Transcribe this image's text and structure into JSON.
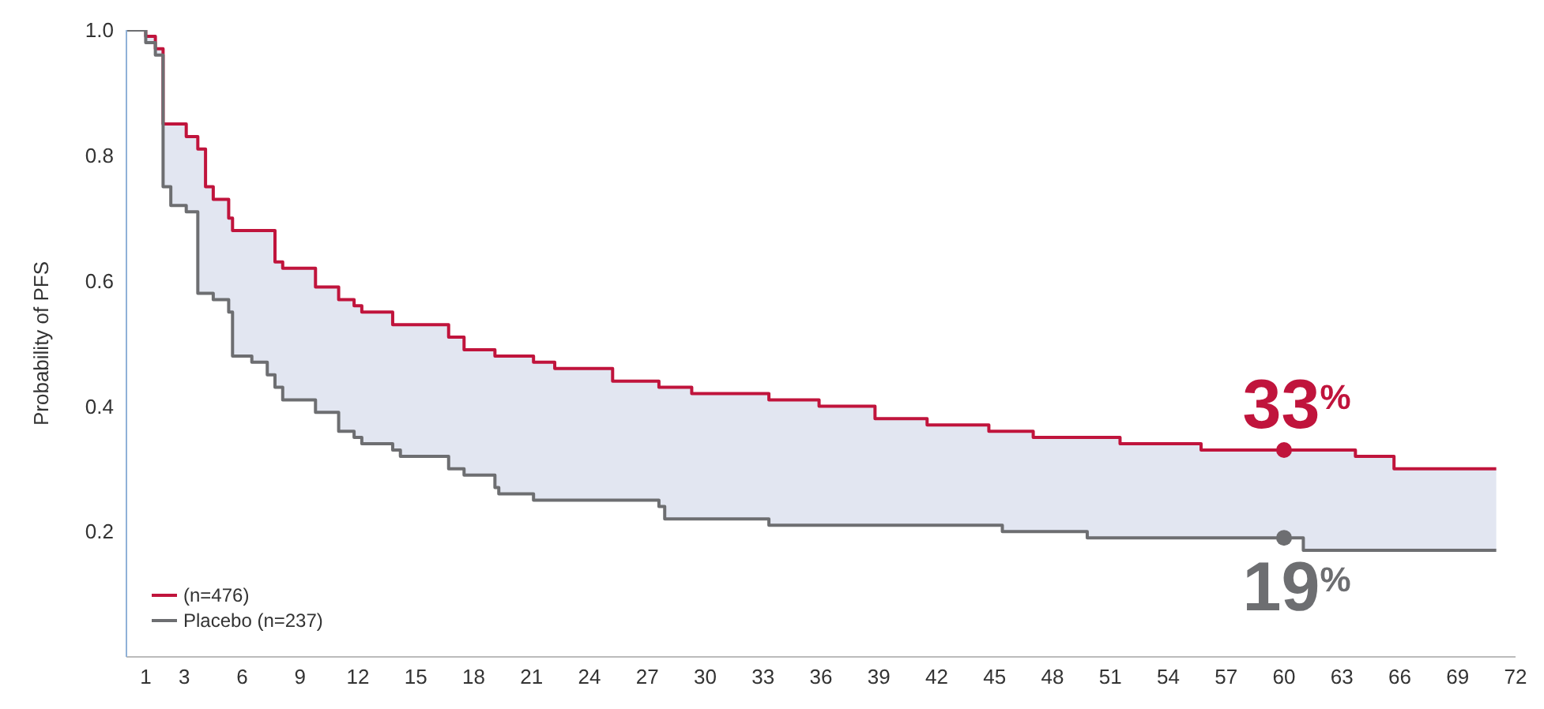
{
  "chart_data": {
    "type": "step",
    "ylabel": "Probability of PFS",
    "x": [
      0,
      1,
      1.5,
      1.9,
      2.3,
      3.1,
      3.7,
      4.1,
      4.5,
      5.3,
      5.5,
      6.5,
      7.3,
      7.7,
      8.1,
      9.8,
      11,
      11.8,
      12.2,
      13.8,
      14.2,
      16.7,
      17.5,
      19.1,
      19.3,
      21.1,
      22.2,
      25.2,
      26.8,
      27.6,
      27.9,
      29.3,
      33.3,
      33.6,
      35.9,
      38.8,
      41.5,
      44.7,
      45.4,
      47,
      49.8,
      51.5,
      52.8,
      55.7,
      61,
      63.7,
      65.7,
      71
    ],
    "series": [
      {
        "name": "(n=476)",
        "color": "#c0143c",
        "values": [
          1.0,
          0.99,
          0.97,
          0.85,
          0.85,
          0.83,
          0.81,
          0.75,
          0.73,
          0.7,
          0.68,
          0.68,
          0.68,
          0.63,
          0.62,
          0.59,
          0.57,
          0.56,
          0.55,
          0.53,
          0.53,
          0.51,
          0.49,
          0.48,
          0.48,
          0.47,
          0.46,
          0.44,
          0.44,
          0.43,
          0.43,
          0.42,
          0.41,
          0.41,
          0.4,
          0.38,
          0.37,
          0.36,
          0.36,
          0.35,
          0.35,
          0.34,
          0.34,
          0.33,
          0.33,
          0.32,
          0.3,
          0.3
        ],
        "upper": [
          1.0,
          0.99,
          0.97,
          0.85,
          0.85,
          0.83,
          0.81,
          0.75,
          0.73,
          0.7,
          0.68,
          0.68,
          0.68,
          0.63,
          0.62,
          0.59,
          0.57,
          0.56,
          0.55,
          0.53,
          0.53,
          0.51,
          0.49,
          0.48,
          0.48,
          0.47,
          0.46,
          0.44,
          0.44,
          0.43,
          0.43,
          0.42,
          0.41,
          0.41,
          0.4,
          0.38,
          0.37,
          0.36,
          0.36,
          0.35,
          0.35,
          0.34,
          0.34,
          0.33,
          0.33,
          0.32,
          0.3,
          0.3
        ],
        "lower": [
          1.0,
          0.98,
          0.96,
          0.75,
          0.72,
          0.71,
          0.58,
          0.58,
          0.57,
          0.55,
          0.48,
          0.47,
          0.45,
          0.43,
          0.41,
          0.39,
          0.36,
          0.35,
          0.34,
          0.33,
          0.32,
          0.3,
          0.29,
          0.27,
          0.26,
          0.25,
          0.25,
          0.25,
          0.25,
          0.24,
          0.22,
          0.22,
          0.21,
          0.21,
          0.21,
          0.21,
          0.21,
          0.21,
          0.2,
          0.2,
          0.19,
          0.19,
          0.19,
          0.19,
          0.17,
          0.17,
          0.17,
          0.17
        ]
      },
      {
        "name": "Placebo (n=237)",
        "color": "#6d6e71",
        "values": [
          1.0,
          0.98,
          0.96,
          0.75,
          0.72,
          0.71,
          0.58,
          0.58,
          0.57,
          0.55,
          0.48,
          0.47,
          0.45,
          0.43,
          0.41,
          0.39,
          0.36,
          0.35,
          0.34,
          0.33,
          0.32,
          0.3,
          0.29,
          0.27,
          0.26,
          0.25,
          0.25,
          0.25,
          0.25,
          0.24,
          0.22,
          0.22,
          0.21,
          0.21,
          0.21,
          0.21,
          0.21,
          0.21,
          0.2,
          0.2,
          0.19,
          0.19,
          0.19,
          0.19,
          0.17,
          0.17,
          0.17,
          0.17
        ]
      }
    ],
    "xlim": [
      0,
      72
    ],
    "xticks": [
      1,
      3,
      6,
      9,
      12,
      15,
      18,
      21,
      24,
      27,
      30,
      33,
      36,
      39,
      42,
      45,
      48,
      51,
      54,
      57,
      60,
      63,
      66,
      69,
      72
    ],
    "ylim": [
      0,
      1
    ],
    "yticks": [
      0.2,
      0.4,
      0.6,
      0.8,
      {
        "value": 1,
        "label": "1.0"
      }
    ],
    "annotations": [
      {
        "text": "33$^{%}$",
        "x": 60,
        "y": 0.33
      },
      {
        "text": "19$^{%}$",
        "x": 60,
        "y": 0.19
      }
    ],
    "legend": "bottom left",
    "grid": false
  }
}
